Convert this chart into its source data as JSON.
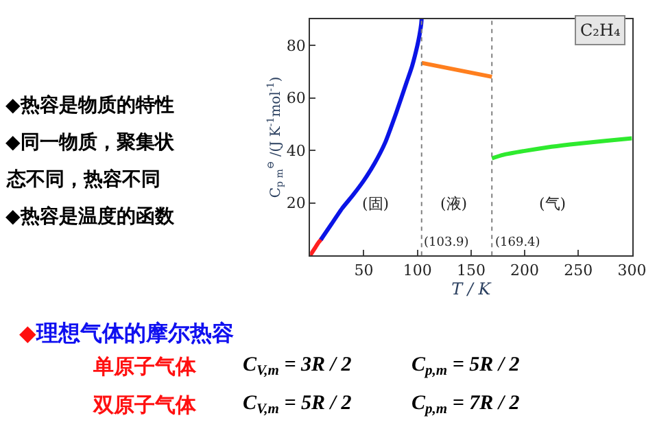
{
  "chart_data": {
    "type": "line",
    "xlabel": "T / K",
    "ylabel": "C$_{p m}$$^{⊖}$ /(J K$^{-1}$mol$^{-1}$)",
    "xlim": [
      0,
      300
    ],
    "ylim": [
      0,
      90
    ],
    "xticks": [
      50,
      100,
      150,
      200,
      250,
      300
    ],
    "yticks": [
      20,
      40,
      60,
      80
    ],
    "marker": "none",
    "line_style": "solid",
    "series": [
      {
        "color": "#ff2020",
        "x": [
          0,
          4,
          8,
          11
        ],
        "values": [
          0,
          2.5,
          5,
          6.5
        ]
      },
      {
        "color": "#0a14e6",
        "x": [
          10,
          20,
          30,
          40,
          50,
          60,
          70,
          80,
          90,
          95,
          100,
          102,
          103.5,
          103.9
        ],
        "values": [
          6,
          12,
          18,
          23,
          28.5,
          35,
          43,
          54,
          66,
          72,
          80,
          84,
          88,
          90
        ]
      },
      {
        "color": "#ff7f1e",
        "x": [
          103.9,
          169.4
        ],
        "values": [
          73.3,
          68
        ]
      },
      {
        "color": "#2eea2e",
        "x": [
          169.4,
          180,
          200,
          225,
          250,
          275,
          300
        ],
        "values": [
          37,
          38.3,
          39.8,
          41.4,
          42.6,
          43.6,
          44.6
        ]
      }
    ],
    "ref_lines": [
      {
        "axis": "x",
        "value": 103.9,
        "label": "(103.9)",
        "color": "#808080",
        "line_style": "dotted"
      },
      {
        "axis": "x",
        "value": 169.4,
        "label": "(169.4)",
        "color": "#808080",
        "line_style": "dotted"
      }
    ],
    "annotations": [
      "(固)",
      "(液)",
      "(气)",
      "C₂H₄",
      "◆热容是物质的特性",
      "◆同一物质，聚集状",
      "态不同，热容不同",
      "◆热容是温度的函数",
      "◆理想气体的摩尔热容",
      "单原子气体",
      "C$_{V,m}$ = 3R / 2",
      "C$_{p,m}$ = 5R / 2",
      "双原子气体",
      "C$_{V,m}$ = 5R / 2",
      "C$_{p,m}$ = 7R / 2"
    ]
  }
}
